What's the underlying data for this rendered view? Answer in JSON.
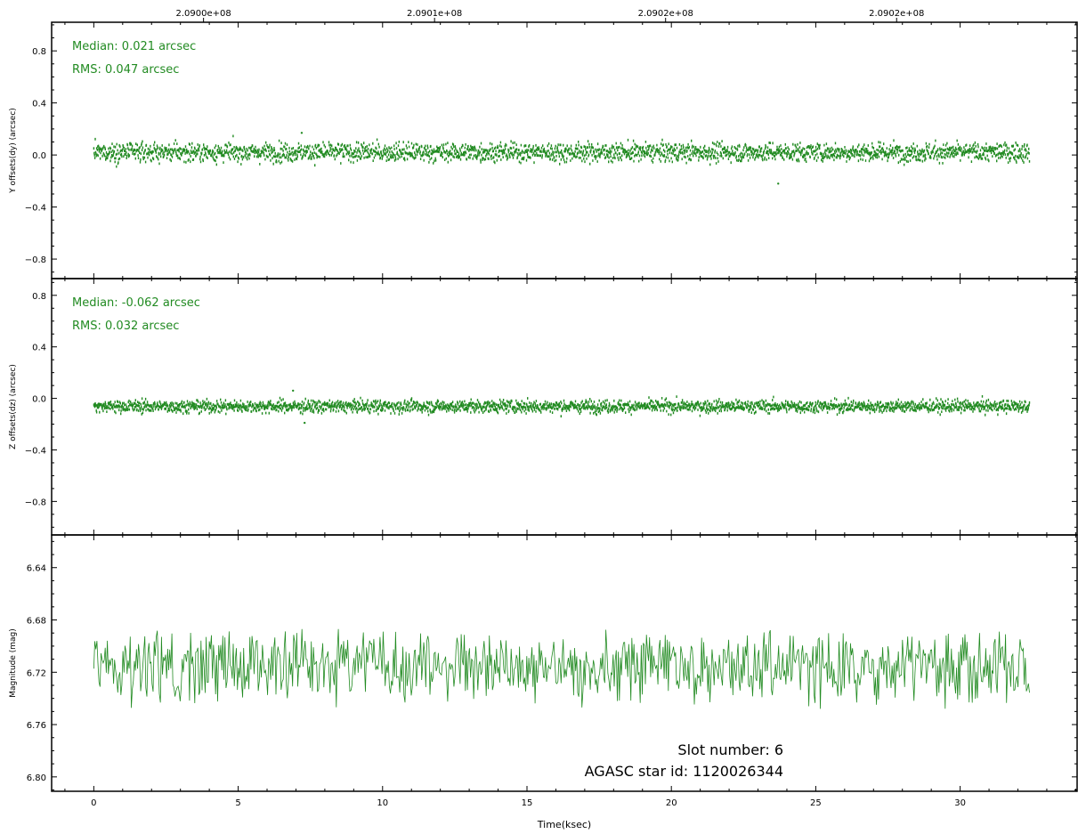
{
  "figure": {
    "xlabel": "Time(ksec)",
    "xlim": [
      -1.46,
      34.05
    ],
    "x_ticks": [
      0,
      5,
      10,
      15,
      20,
      25,
      30
    ],
    "x_tick_labels": [
      "0",
      "5",
      "10",
      "15",
      "20",
      "25",
      "30"
    ],
    "x_minor_step": 1,
    "top_ticks": [
      3.8,
      11.8,
      19.8,
      27.8
    ],
    "top_tick_labels": [
      "2.0900e+08",
      "2.0901e+08",
      "2.0902e+08",
      "2.0902e+08"
    ],
    "series_color": "#228B22"
  },
  "annotations": {
    "slot": "Slot number: 6",
    "agasc": "AGASC star id: 1120026344"
  },
  "panels": [
    {
      "ylabel": "Y offsets(dy) (arcsec)",
      "ylim": [
        -0.95,
        1.02
      ],
      "y_ticks": [
        -0.8,
        -0.4,
        0.0,
        0.4,
        0.8
      ],
      "y_tick_labels": [
        "−0.8",
        "−0.4",
        "0.0",
        "0.4",
        "0.8"
      ],
      "y_minor_step": 0.1,
      "stats": [
        "Median: 0.021 arcsec",
        "RMS: 0.047 arcsec"
      ]
    },
    {
      "ylabel": "Z offsets(dz) (arcsec)",
      "ylim": [
        -1.06,
        0.93
      ],
      "y_ticks": [
        -0.8,
        -0.4,
        0.0,
        0.4,
        0.8
      ],
      "y_tick_labels": [
        "−0.8",
        "−0.4",
        "0.0",
        "0.4",
        "0.8"
      ],
      "y_minor_step": 0.1,
      "stats": [
        "Median: -0.062 arcsec",
        "RMS: 0.032 arcsec"
      ]
    },
    {
      "ylabel": "Magnitude (mag)",
      "ylim": [
        6.811,
        6.615
      ],
      "y_ticks": [
        6.64,
        6.68,
        6.72,
        6.76,
        6.8
      ],
      "y_tick_labels": [
        "6.64",
        "6.68",
        "6.72",
        "6.76",
        "6.80"
      ],
      "y_minor_step": 0.01,
      "stats": []
    }
  ],
  "chart_data": [
    {
      "type": "scatter",
      "panel": 0,
      "ylabel": "Y offsets(dy) (arcsec)",
      "x_range": [
        0,
        32.4
      ],
      "samples": 2600,
      "center": 0.021,
      "rms": 0.047,
      "outliers": [
        {
          "x": 23.7,
          "y": -0.22
        },
        {
          "x": 7.2,
          "y": 0.17
        }
      ]
    },
    {
      "type": "scatter",
      "panel": 1,
      "ylabel": "Z offsets(dz) (arcsec)",
      "x_range": [
        0,
        32.4
      ],
      "samples": 2600,
      "center": -0.062,
      "rms": 0.032,
      "outliers": [
        {
          "x": 7.3,
          "y": -0.19
        },
        {
          "x": 6.9,
          "y": 0.06
        }
      ]
    },
    {
      "type": "line",
      "panel": 2,
      "ylabel": "Magnitude (mag)",
      "x_range": [
        0,
        32.4
      ],
      "samples": 900,
      "center": 6.716,
      "range": [
        6.687,
        6.752
      ]
    }
  ]
}
